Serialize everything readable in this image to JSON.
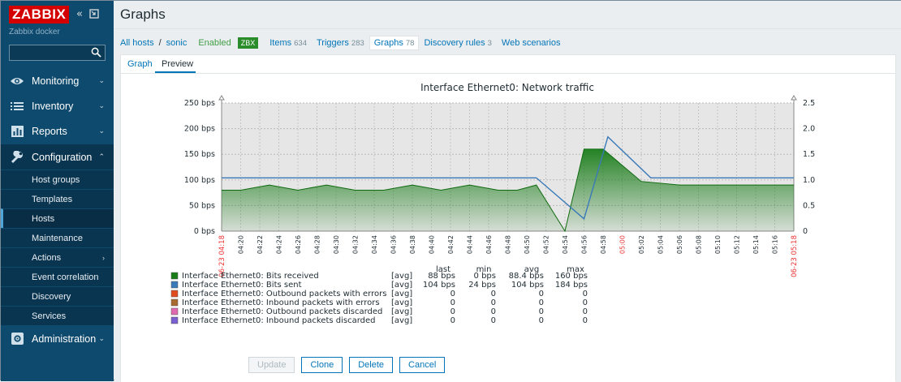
{
  "sidebar": {
    "logo": "ZABBIX",
    "server_name": "Zabbix docker",
    "search_placeholder": "",
    "menu": [
      {
        "label": "Monitoring",
        "icon": "eye-icon"
      },
      {
        "label": "Inventory",
        "icon": "list-icon"
      },
      {
        "label": "Reports",
        "icon": "bar-chart-icon"
      },
      {
        "label": "Configuration",
        "icon": "wrench-icon"
      },
      {
        "label": "Administration",
        "icon": "gear-icon"
      }
    ],
    "submenu": [
      {
        "label": "Host groups"
      },
      {
        "label": "Templates"
      },
      {
        "label": "Hosts"
      },
      {
        "label": "Maintenance"
      },
      {
        "label": "Actions"
      },
      {
        "label": "Event correlation"
      },
      {
        "label": "Discovery"
      },
      {
        "label": "Services"
      }
    ]
  },
  "page": {
    "title": "Graphs"
  },
  "nav": {
    "all_hosts": "All hosts",
    "sep": "/",
    "host": "sonic",
    "enabled": "Enabled",
    "zbx": "ZBX",
    "items": "Items",
    "items_count": "634",
    "triggers": "Triggers",
    "triggers_count": "283",
    "graphs": "Graphs",
    "graphs_count": "78",
    "discovery": "Discovery rules",
    "discovery_count": "3",
    "web": "Web scenarios"
  },
  "tabs": {
    "graph": "Graph",
    "preview": "Preview"
  },
  "chart_data": {
    "type": "area",
    "title": "Interface Ethernet0: Network traffic",
    "y_left_ticks": [
      "0 bps",
      "50 bps",
      "100 bps",
      "150 bps",
      "200 bps",
      "250 bps"
    ],
    "y_right_ticks": [
      "0",
      "0.5",
      "1.0",
      "1.5",
      "2.0",
      "2.5"
    ],
    "ylim": [
      0,
      250
    ],
    "x_ticks": [
      "04:20",
      "04:22",
      "04:24",
      "04:26",
      "04:28",
      "04:30",
      "04:32",
      "04:34",
      "04:36",
      "04:38",
      "04:40",
      "04:42",
      "04:44",
      "04:46",
      "04:48",
      "04:50",
      "04:52",
      "04:54",
      "04:56",
      "04:58",
      "05:00",
      "05:02",
      "05:04",
      "05:06",
      "05:08",
      "05:10",
      "05:12",
      "05:14",
      "05:16"
    ],
    "x_start_label": "06-23 04:18",
    "x_end_label": "06-23 05:18",
    "x_highlight": "05:00",
    "series": [
      {
        "name": "Interface Ethernet0: Bits received",
        "color": "#1a7d1a",
        "x": [
          0,
          2,
          5,
          8,
          11,
          14,
          17,
          20,
          23,
          26,
          29,
          31,
          33,
          36,
          38,
          40,
          44,
          48,
          51,
          54,
          57,
          60
        ],
        "values": [
          80,
          80,
          90,
          80,
          90,
          80,
          80,
          90,
          80,
          90,
          80,
          80,
          90,
          0,
          160,
          160,
          97,
          90,
          90,
          90,
          90,
          90
        ]
      },
      {
        "name": "Interface Ethernet0: Bits sent",
        "color": "#3a7ab8",
        "x": [
          0,
          33,
          38,
          40.5,
          45,
          60
        ],
        "values": [
          104,
          104,
          24,
          184,
          104,
          104
        ]
      }
    ],
    "legend": {
      "headers": [
        "last",
        "min",
        "avg",
        "max"
      ],
      "rows": [
        {
          "name": "Interface Ethernet0: Bits received",
          "color": "#1a7d1a",
          "fn": "[avg]",
          "last": "88 bps",
          "min": "0 bps",
          "avg": "88.4 bps",
          "max": "160 bps"
        },
        {
          "name": "Interface Ethernet0: Bits sent",
          "color": "#3a7ab8",
          "fn": "[avg]",
          "last": "104 bps",
          "min": "24 bps",
          "avg": "104 bps",
          "max": "184 bps"
        },
        {
          "name": "Interface Ethernet0: Outbound packets with errors",
          "color": "#e04b1f",
          "fn": "[avg]",
          "last": "0",
          "min": "0",
          "avg": "0",
          "max": "0"
        },
        {
          "name": "Interface Ethernet0: Inbound packets with errors",
          "color": "#a86a2f",
          "fn": "[avg]",
          "last": "0",
          "min": "0",
          "avg": "0",
          "max": "0"
        },
        {
          "name": "Interface Ethernet0: Outbound packets discarded",
          "color": "#e06ab0",
          "fn": "[avg]",
          "last": "0",
          "min": "0",
          "avg": "0",
          "max": "0"
        },
        {
          "name": "Interface Ethernet0: Inbound packets discarded",
          "color": "#7a5fd0",
          "fn": "[avg]",
          "last": "0",
          "min": "0",
          "avg": "0",
          "max": "0"
        }
      ]
    }
  },
  "buttons": {
    "update": "Update",
    "clone": "Clone",
    "delete": "Delete",
    "cancel": "Cancel"
  }
}
